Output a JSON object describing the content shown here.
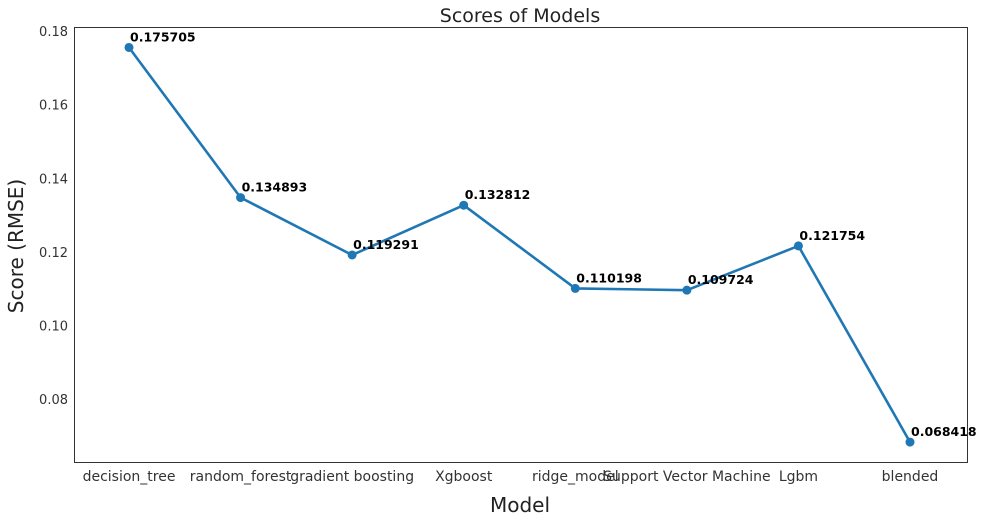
{
  "chart_data": {
    "type": "line",
    "title": "Scores of Models",
    "xlabel": "Model",
    "ylabel": "Score (RMSE)",
    "categories": [
      "decision_tree",
      "random_forest",
      "gradient boosting",
      "Xgboost",
      "ridge_model",
      "Support Vector Machine",
      "Lgbm",
      "blended"
    ],
    "values": [
      0.175705,
      0.134893,
      0.119291,
      0.132812,
      0.110198,
      0.109724,
      0.121754,
      0.068418
    ],
    "data_labels": [
      "0.175705",
      "0.134893",
      "0.119291",
      "0.132812",
      "0.110198",
      "0.109724",
      "0.121754",
      "0.068418"
    ],
    "ylim": [
      0.063,
      0.181
    ],
    "yticks": [
      0.08,
      0.1,
      0.12,
      0.14,
      0.16,
      0.18
    ],
    "ytick_labels": [
      "0.08",
      "0.10",
      "0.12",
      "0.14",
      "0.16",
      "0.18"
    ],
    "grid": false,
    "legend": "none",
    "colors": {
      "line": "#1f77b4",
      "marker": "#1f77b4",
      "labels": "#000000",
      "frame": "#333333"
    }
  }
}
